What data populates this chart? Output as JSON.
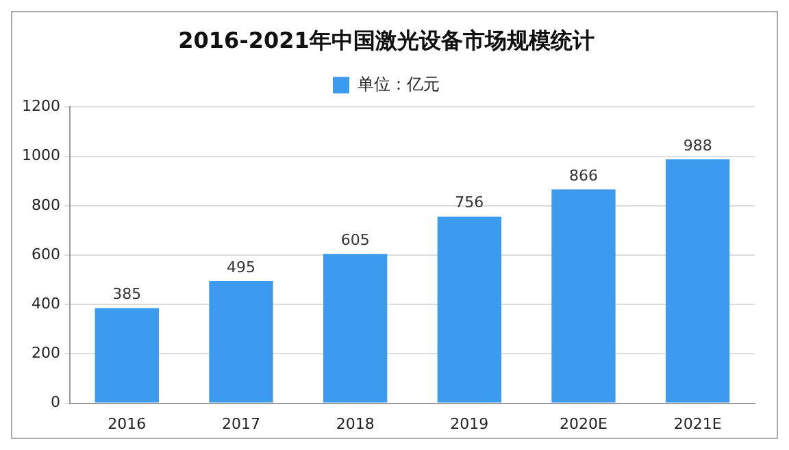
{
  "chart_data": {
    "type": "bar",
    "title": "2016-2021年中国激光设备市场规模统计",
    "categories": [
      "2016",
      "2017",
      "2018",
      "2019",
      "2020E",
      "2021E"
    ],
    "series": [
      {
        "name": "单位：亿元",
        "color": "#3d9bef",
        "values": [
          385,
          495,
          605,
          756,
          866,
          988
        ]
      }
    ],
    "ylim": [
      0,
      1200
    ],
    "yticks": [
      0,
      200,
      400,
      600,
      800,
      1000,
      1200
    ],
    "grid": "y",
    "legend": "top",
    "data_labels": true
  }
}
